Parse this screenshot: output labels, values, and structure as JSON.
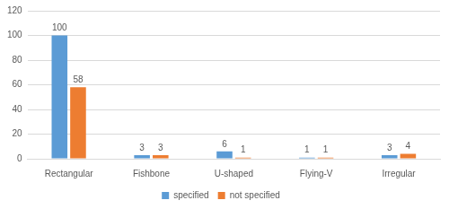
{
  "chart_data": {
    "type": "bar",
    "categories": [
      "Rectangular",
      "Fishbone",
      "U-shaped",
      "Flying-V",
      "Irregular"
    ],
    "series": [
      {
        "name": "specified",
        "color": "#5b9bd5",
        "values": [
          100,
          3,
          6,
          1,
          3
        ]
      },
      {
        "name": "not specified",
        "color": "#ed7d31",
        "values": [
          58,
          3,
          1,
          1,
          4
        ]
      }
    ],
    "ylim": [
      0,
      120
    ],
    "yticks": [
      0,
      20,
      40,
      60,
      80,
      100,
      120
    ],
    "grid": true,
    "legend": "bottom",
    "data_labels": true
  }
}
